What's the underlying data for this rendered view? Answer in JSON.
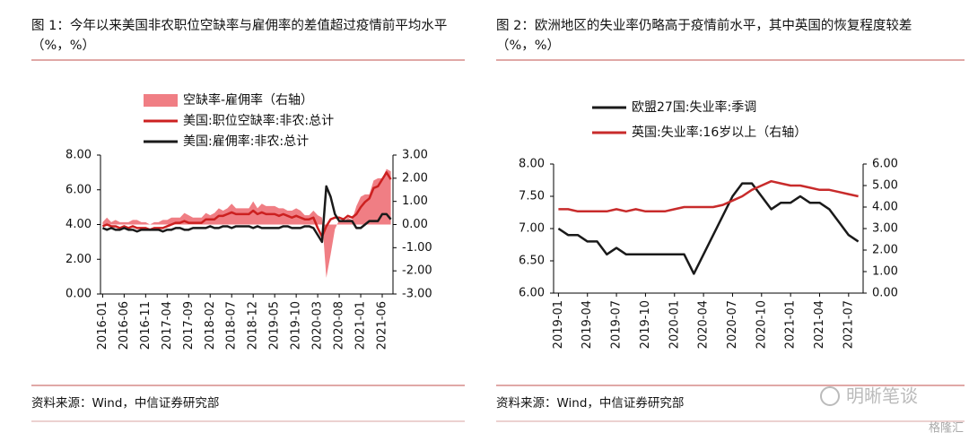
{
  "chart_data": [
    {
      "type": "line",
      "title": "图 1：今年以来美国非农职位空缺率与雇佣率的差值超过疫情前平均水平（%，%）",
      "source": "资料来源：Wind，中信证券研究部",
      "categories": [
        "2016-01",
        null,
        null,
        null,
        null,
        "2016-06",
        null,
        null,
        null,
        null,
        "2016-11",
        null,
        null,
        null,
        null,
        "2017-04",
        null,
        null,
        null,
        null,
        "2017-09",
        null,
        null,
        null,
        null,
        "2018-02",
        null,
        null,
        null,
        null,
        "2018-07",
        null,
        null,
        null,
        null,
        "2018-12",
        null,
        null,
        null,
        null,
        "2019-05",
        null,
        null,
        null,
        null,
        "2019-10",
        null,
        null,
        null,
        null,
        "2020-03",
        null,
        null,
        null,
        null,
        "2020-08",
        null,
        null,
        null,
        null,
        "2021-01",
        null,
        null,
        null,
        null,
        "2021-06",
        null,
        null
      ],
      "series": [
        {
          "name": "空缺率-雇佣率（右轴）",
          "type": "area",
          "axis": "y2",
          "color": "#f07e84",
          "values": [
            0.1,
            0.3,
            0.1,
            0.2,
            0.1,
            0.1,
            0.1,
            0.2,
            0.2,
            0.1,
            0.1,
            0.0,
            0.1,
            0.1,
            0.2,
            0.2,
            0.3,
            0.3,
            0.3,
            0.5,
            0.4,
            0.3,
            0.3,
            0.3,
            0.5,
            0.4,
            0.5,
            0.7,
            0.6,
            0.7,
            0.9,
            0.7,
            0.7,
            0.7,
            0.7,
            1.0,
            0.7,
            0.9,
            0.8,
            0.8,
            0.8,
            0.7,
            0.7,
            0.6,
            0.6,
            0.7,
            0.6,
            0.4,
            0.4,
            0.6,
            0.4,
            0.3,
            -2.3,
            -1.3,
            -0.2,
            0.2,
            0.1,
            0.3,
            0.2,
            0.8,
            1.2,
            1.3,
            1.3,
            1.9,
            2.0,
            2.0,
            2.4,
            2.3
          ]
        },
        {
          "name": "美国:职位空缺率:非农:总计",
          "type": "line",
          "color": "#cc2020",
          "values": [
            3.9,
            4.0,
            3.9,
            3.9,
            3.8,
            3.9,
            3.8,
            3.9,
            3.8,
            3.8,
            3.8,
            3.7,
            3.8,
            3.8,
            3.8,
            3.9,
            4.0,
            4.1,
            4.1,
            4.2,
            4.1,
            4.1,
            4.1,
            4.1,
            4.3,
            4.3,
            4.3,
            4.5,
            4.5,
            4.6,
            4.7,
            4.6,
            4.6,
            4.6,
            4.6,
            4.8,
            4.6,
            4.7,
            4.6,
            4.6,
            4.6,
            4.5,
            4.6,
            4.5,
            4.4,
            4.5,
            4.4,
            4.3,
            4.3,
            4.4,
            3.8,
            3.3,
            3.9,
            4.3,
            4.4,
            4.4,
            4.3,
            4.5,
            4.4,
            4.6,
            5.0,
            5.3,
            5.5,
            6.1,
            6.2,
            6.6,
            7.0,
            6.6
          ]
        },
        {
          "name": "美国:雇佣率:非农:总计",
          "type": "line",
          "color": "#1a1a1a",
          "values": [
            3.8,
            3.7,
            3.8,
            3.7,
            3.7,
            3.8,
            3.7,
            3.7,
            3.6,
            3.7,
            3.7,
            3.7,
            3.7,
            3.7,
            3.6,
            3.7,
            3.7,
            3.8,
            3.8,
            3.7,
            3.7,
            3.8,
            3.8,
            3.8,
            3.8,
            3.9,
            3.8,
            3.8,
            3.9,
            3.9,
            3.8,
            3.9,
            3.9,
            3.9,
            3.9,
            3.8,
            3.9,
            3.8,
            3.8,
            3.8,
            3.8,
            3.8,
            3.9,
            3.9,
            3.8,
            3.8,
            3.8,
            3.9,
            3.9,
            3.8,
            3.4,
            3.0,
            6.2,
            5.6,
            4.6,
            4.2,
            4.2,
            4.2,
            4.2,
            3.8,
            3.8,
            4.0,
            4.2,
            4.2,
            4.2,
            4.6,
            4.6,
            4.3
          ]
        }
      ],
      "ylim": [
        0,
        8
      ],
      "yticks": [
        {
          "value": 0,
          "label": "0.00"
        },
        {
          "value": 2,
          "label": "2.00"
        },
        {
          "value": 4,
          "label": "4.00"
        },
        {
          "value": 6,
          "label": "6.00"
        },
        {
          "value": 8,
          "label": "8.00"
        }
      ],
      "y2lim": [
        -3,
        3
      ],
      "y2ticks": [
        {
          "value": -3,
          "label": "-3.00"
        },
        {
          "value": -2,
          "label": "-2.00"
        },
        {
          "value": -1,
          "label": "-1.00"
        },
        {
          "value": 0,
          "label": "0.00"
        },
        {
          "value": 1,
          "label": "1.00"
        },
        {
          "value": 2,
          "label": "2.00"
        },
        {
          "value": 3,
          "label": "3.00"
        }
      ],
      "grid": false,
      "legend": "top"
    },
    {
      "type": "line",
      "title": "图 2：欧洲地区的失业率仍略高于疫情前水平，其中英国的恢复程度较差（%，%）",
      "source": "资料来源：Wind，中信证券研究部",
      "categories": [
        "2019-01",
        null,
        null,
        "2019-04",
        null,
        null,
        "2019-07",
        null,
        null,
        "2019-10",
        null,
        null,
        "2020-01",
        null,
        null,
        "2020-04",
        null,
        null,
        "2020-07",
        null,
        null,
        "2020-10",
        null,
        null,
        "2021-01",
        null,
        null,
        "2021-04",
        null,
        null,
        "2021-07",
        null
      ],
      "series": [
        {
          "name": "欧盟27国:失业率:季调",
          "type": "line",
          "color": "#1a1a1a",
          "values": [
            7.0,
            6.9,
            6.9,
            6.8,
            6.8,
            6.6,
            6.7,
            6.6,
            6.6,
            6.6,
            6.6,
            6.6,
            6.6,
            6.6,
            6.3,
            6.6,
            6.9,
            7.2,
            7.5,
            7.7,
            7.7,
            7.5,
            7.3,
            7.4,
            7.4,
            7.5,
            7.4,
            7.4,
            7.3,
            7.1,
            6.9,
            6.8
          ]
        },
        {
          "name": "英国:失业率:16岁以上（右轴）",
          "type": "line",
          "axis": "y2",
          "color": "#c82b2b",
          "values": [
            3.9,
            3.9,
            3.8,
            3.8,
            3.8,
            3.8,
            3.9,
            3.8,
            3.9,
            3.8,
            3.8,
            3.8,
            3.9,
            4.0,
            4.0,
            4.0,
            4.0,
            4.1,
            4.3,
            4.5,
            4.8,
            5.0,
            5.2,
            5.1,
            5.0,
            5.0,
            4.9,
            4.8,
            4.8,
            4.7,
            4.6,
            4.5
          ]
        }
      ],
      "ylim": [
        6,
        8
      ],
      "yticks": [
        {
          "value": 6,
          "label": "6.00"
        },
        {
          "value": 6.5,
          "label": "6.50"
        },
        {
          "value": 7,
          "label": "7.00"
        },
        {
          "value": 7.5,
          "label": "7.50"
        },
        {
          "value": 8,
          "label": "8.00"
        }
      ],
      "y2lim": [
        0,
        6
      ],
      "y2ticks": [
        {
          "value": 0,
          "label": "0.00"
        },
        {
          "value": 1,
          "label": "1.00"
        },
        {
          "value": 2,
          "label": "2.00"
        },
        {
          "value": 3,
          "label": "3.00"
        },
        {
          "value": 4,
          "label": "4.00"
        },
        {
          "value": 5,
          "label": "5.00"
        },
        {
          "value": 6,
          "label": "6.00"
        }
      ],
      "grid": false,
      "legend": "top"
    }
  ],
  "watermark": {
    "text": "明晰笔谈",
    "brand": "格隆汇"
  }
}
